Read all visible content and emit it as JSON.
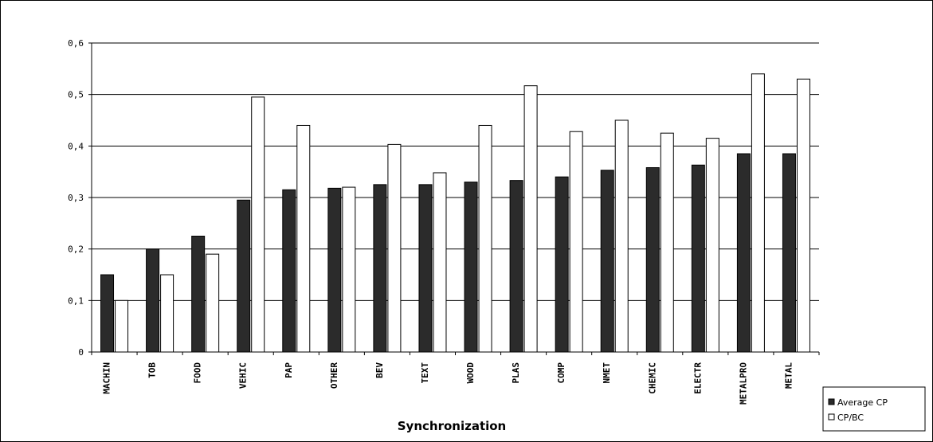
{
  "chart_data": {
    "type": "bar",
    "title": "",
    "xlabel": "Synchronization",
    "ylabel": "",
    "ylim": [
      0,
      0.6
    ],
    "yticks": [
      "0",
      "0,1",
      "0,2",
      "0,3",
      "0,4",
      "0,5",
      "0,6"
    ],
    "ytick_values": [
      0,
      0.1,
      0.2,
      0.3,
      0.4,
      0.5,
      0.6
    ],
    "grid": true,
    "legend_position": "bottom-right",
    "categories": [
      "MACHIN",
      "TOB",
      "FOOD",
      "VEHIC",
      "PAP",
      "OTHER",
      "BEV",
      "TEXT",
      "WOOD",
      "PLAS",
      "COMP",
      "NMET",
      "CHEMIC",
      "ELECTR",
      "METALPRO",
      "METAL"
    ],
    "series": [
      {
        "name": "Average CP",
        "color": "#2b2b2b",
        "values": [
          0.15,
          0.2,
          0.225,
          0.295,
          0.315,
          0.318,
          0.325,
          0.325,
          0.33,
          0.333,
          0.34,
          0.353,
          0.358,
          0.363,
          0.385,
          0.385
        ]
      },
      {
        "name": "CP/BC",
        "color": "#ffffff",
        "values": [
          0.1,
          0.15,
          0.19,
          0.495,
          0.44,
          0.32,
          0.403,
          0.348,
          0.44,
          0.517,
          0.428,
          0.45,
          0.425,
          0.415,
          0.54,
          0.53
        ]
      }
    ]
  }
}
